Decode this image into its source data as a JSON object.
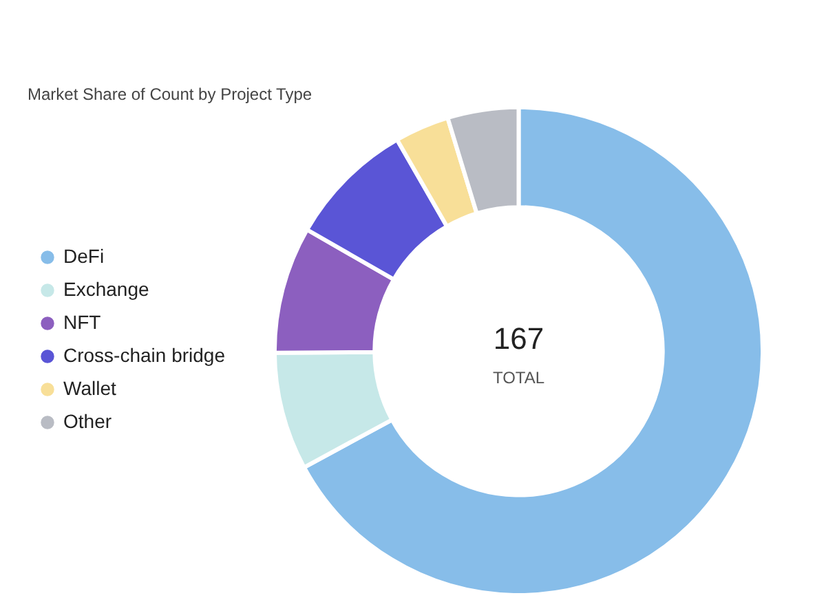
{
  "chart_data": {
    "type": "donut",
    "title": "Market Share of Count by Project Type",
    "categories": [
      "DeFi",
      "Exchange",
      "NFT",
      "Cross-chain bridge",
      "Wallet",
      "Other"
    ],
    "values": [
      67.1,
      7.8,
      8.4,
      8.4,
      3.6,
      4.7
    ],
    "colors": [
      "#87bde9",
      "#c6e8e8",
      "#8c5fbf",
      "#5a55d6",
      "#f8df98",
      "#b9bcc4"
    ],
    "legend": "left",
    "annotations": [
      "167",
      "TOTAL"
    ]
  }
}
